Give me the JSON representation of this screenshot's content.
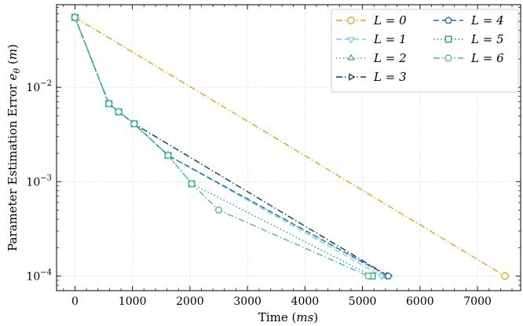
{
  "chart_data": {
    "type": "line",
    "title": "",
    "xlabel": "Time",
    "xlabel_unit": "ms",
    "ylabel": "Parameter Estimation Error",
    "ylabel_symbol": "e",
    "ylabel_sub": "θ",
    "ylabel_unit": "m",
    "xlim": [
      -320,
      7750
    ],
    "ylim": [
      7e-05,
      0.075
    ],
    "y_scale": "log",
    "x_ticks": [
      0,
      1000,
      2000,
      3000,
      4000,
      5000,
      6000,
      7000
    ],
    "x_tick_labels": [
      "0",
      "1000",
      "2000",
      "3000",
      "4000",
      "5000",
      "6000",
      "7000"
    ],
    "y_ticks": [
      0.0001,
      0.001,
      0.01
    ],
    "y_tick_labels": [
      {
        "base": "10",
        "exp": "−4"
      },
      {
        "base": "10",
        "exp": "−3"
      },
      {
        "base": "10",
        "exp": "−2"
      }
    ],
    "grid": true,
    "legend_placement": "top-right",
    "series": [
      {
        "name": "L = 0",
        "color": "#DAA520",
        "dash": "dashdot",
        "marker": "circle",
        "x": [
          0,
          7480
        ],
        "y": [
          0.055,
          0.0001
        ]
      },
      {
        "name": "L = 1",
        "color": "#7FCFE0",
        "dash": "dashed",
        "marker": "triangle-down",
        "x": [
          0,
          590,
          760,
          1030,
          1620,
          5330
        ],
        "y": [
          0.055,
          0.0067,
          0.0055,
          0.0041,
          0.0019,
          0.0001
        ]
      },
      {
        "name": "L = 2",
        "color": "#4BA3C3",
        "dash": "dotted",
        "marker": "triangle-up",
        "x": [
          0,
          590,
          760,
          1030,
          1620,
          5420
        ],
        "y": [
          0.055,
          0.0067,
          0.0055,
          0.0041,
          0.0019,
          0.0001
        ]
      },
      {
        "name": "L = 3",
        "color": "#0B3C5D",
        "dash": "dashdot",
        "marker": "triangle-right",
        "x": [
          0,
          590,
          760,
          1030,
          5450
        ],
        "y": [
          0.055,
          0.0067,
          0.0055,
          0.0041,
          0.0001
        ]
      },
      {
        "name": "L = 4",
        "color": "#1F6FA8",
        "dash": "dashed",
        "marker": "pentagon",
        "x": [
          0,
          590,
          760,
          1030,
          1620,
          5450
        ],
        "y": [
          0.055,
          0.0067,
          0.0055,
          0.0041,
          0.0019,
          0.0001
        ]
      },
      {
        "name": "L = 5",
        "color": "#1A9E8C",
        "dash": "dotted",
        "marker": "square",
        "x": [
          0,
          590,
          760,
          1030,
          1620,
          2030,
          5170
        ],
        "y": [
          0.055,
          0.0067,
          0.0055,
          0.0041,
          0.0019,
          0.00095,
          0.0001
        ]
      },
      {
        "name": "L = 6",
        "color": "#4DB6A6",
        "dash": "dashdot",
        "marker": "hexagon",
        "x": [
          0,
          590,
          760,
          1030,
          1620,
          2030,
          2500,
          5100
        ],
        "y": [
          0.055,
          0.0067,
          0.0055,
          0.0041,
          0.0019,
          0.00095,
          0.0005,
          0.0001
        ]
      }
    ],
    "legend_columns": [
      [
        "L = 0",
        "L = 1",
        "L = 2",
        "L = 3"
      ],
      [
        "L = 4",
        "L = 5",
        "L = 6"
      ]
    ]
  }
}
